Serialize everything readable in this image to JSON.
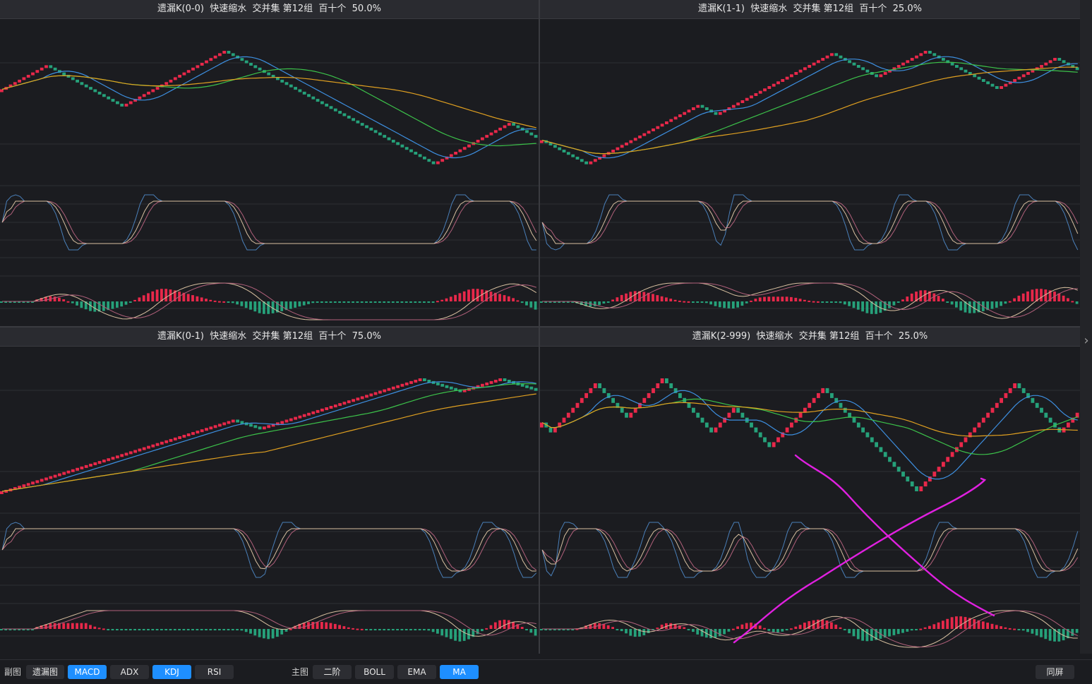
{
  "panels": [
    {
      "title": "遗漏K(0-0)  快速缩水  交并集 第12组  百十个  50.0%"
    },
    {
      "title": "遗漏K(1-1)  快速缩水  交并集 第12组  百十个  25.0%"
    },
    {
      "title": "遗漏K(0-1)  快速缩水  交并集 第12组  百十个  75.0%"
    },
    {
      "title": "遗漏K(2-999)  快速缩水  交并集 第12组  百十个  25.0%"
    }
  ],
  "toolbar": {
    "sub_label": "副图",
    "sub_buttons": [
      "遗漏图",
      "MACD",
      "ADX",
      "KDJ",
      "RSI"
    ],
    "sub_active": [
      "MACD",
      "KDJ"
    ],
    "main_label": "主图",
    "main_buttons": [
      "二阶",
      "BOLL",
      "EMA",
      "MA"
    ],
    "main_active": [
      "MA"
    ],
    "sync_label": "同屏"
  },
  "icons": {
    "expand": "chevron-right-icon"
  },
  "colors": {
    "up": "#e8284a",
    "down": "#26a17a",
    "ma_blue": "#3d8fe0",
    "ma_green": "#3cc24a",
    "ma_orange": "#e0a020",
    "kdj_k": "#4a7fb8",
    "kdj_d": "#b0607a",
    "kdj_j": "#d8c0a0",
    "annotation": "#e020e0",
    "accent": "#1e8fff"
  }
}
